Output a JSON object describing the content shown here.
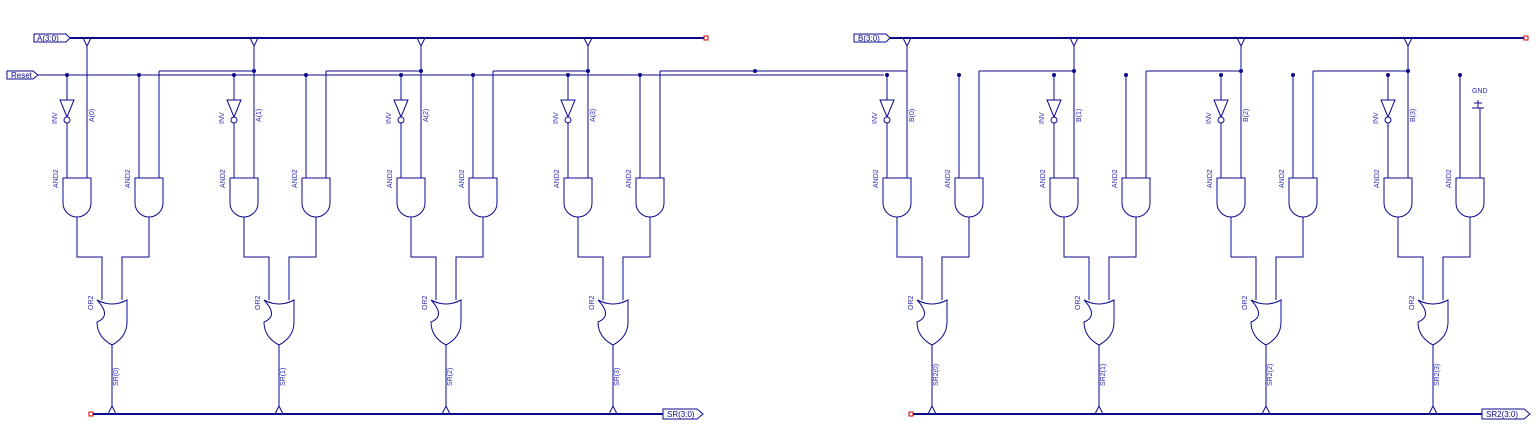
{
  "colors": {
    "wire": "#0a0a8c",
    "label": "#2a2ab0",
    "terminal": "#cc0000",
    "background": "#ffffff"
  },
  "ports": {
    "input_a": "A(3:0)",
    "input_b": "B(3:0)",
    "reset": "Reset",
    "output_sr": "SR(3:0)",
    "output_sr2": "SR2(3:0)",
    "gnd": "GND"
  },
  "gate_types": {
    "inverter": "INV",
    "and": "AND2",
    "or": "OR2"
  },
  "banks": [
    {
      "id": "A",
      "bits": [
        {
          "tap": "A(0)",
          "out": "SR(0)"
        },
        {
          "tap": "A(1)",
          "out": "SR(1)"
        },
        {
          "tap": "A(2)",
          "out": "SR(2)"
        },
        {
          "tap": "A(3)",
          "out": "SR(3)"
        }
      ]
    },
    {
      "id": "B",
      "bits": [
        {
          "tap": "B(0)",
          "out": "SR2(0)"
        },
        {
          "tap": "B(1)",
          "out": "SR2(1)"
        },
        {
          "tap": "B(2)",
          "out": "SR2(2)"
        },
        {
          "tap": "B(3)",
          "out": "SR2(3)"
        }
      ]
    }
  ]
}
